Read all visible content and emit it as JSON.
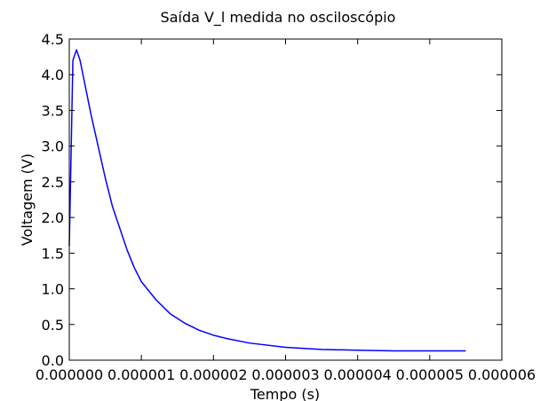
{
  "chart_data": {
    "type": "line",
    "title": "Saída V_l medida no osciloscópio",
    "xlabel": "Tempo (s)",
    "ylabel": "Voltagem (V)",
    "xlim": [
      0,
      6e-06
    ],
    "ylim": [
      0,
      4.5
    ],
    "x_ticks": [
      "0.000000",
      "0.000001",
      "0.000002",
      "0.000003",
      "0.000004",
      "0.000005",
      "0.000006"
    ],
    "y_ticks": [
      "0.0",
      "0.5",
      "1.0",
      "1.5",
      "2.0",
      "2.5",
      "3.0",
      "3.5",
      "4.0",
      "4.5"
    ],
    "grid": false,
    "series": [
      {
        "color": "#0000ff",
        "x": [
          0,
          5e-08,
          1e-07,
          1.5e-07,
          2e-07,
          2.5e-07,
          3e-07,
          4e-07,
          5e-07,
          6e-07,
          7e-07,
          8e-07,
          9e-07,
          1e-06,
          1.2e-06,
          1.4e-06,
          1.6e-06,
          1.8e-06,
          2e-06,
          2.2e-06,
          2.5e-06,
          3e-06,
          3.5e-06,
          4e-06,
          4.5e-06,
          5e-06,
          5.5e-06
        ],
        "values": [
          1.6,
          4.2,
          4.35,
          4.2,
          3.95,
          3.7,
          3.45,
          3.0,
          2.55,
          2.15,
          1.85,
          1.55,
          1.3,
          1.1,
          0.85,
          0.65,
          0.52,
          0.42,
          0.35,
          0.3,
          0.24,
          0.18,
          0.15,
          0.14,
          0.13,
          0.13,
          0.13
        ]
      }
    ]
  }
}
